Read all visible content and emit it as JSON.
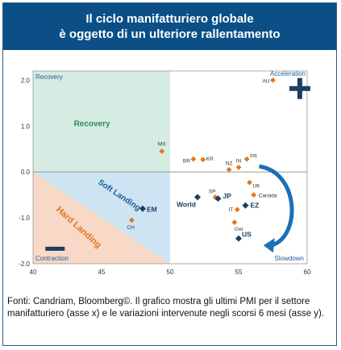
{
  "header": {
    "title_line1": "Il ciclo manifatturiero globale",
    "title_line2": "è oggetto di un ulteriore rallentamento"
  },
  "caption": "Fonti: Candriam, Bloomberg©. Il grafico mostra gli ultimi PMI per il settore manifatturiero (asse x) e le variazioni intervenute negli scorsi 6 mesi (asse y).",
  "colors": {
    "header_bg": "#0b4f86",
    "recovery_zone": "#d6ebe1",
    "soft_landing_zone": "#cde5f3",
    "hard_landing_zone": "#f8d8c6",
    "country_marker": "#e2761c",
    "aggregate_marker": "#1b3f63",
    "quadrant_text": "#1f5b99",
    "recovery_text": "#2e8b57",
    "hard_landing_text": "#e2761c",
    "arrow": "#1a6fb8"
  },
  "chart_data": {
    "type": "scatter",
    "xlim": [
      40,
      60
    ],
    "ylim": [
      -2.0,
      2.2
    ],
    "x_ticks": [
      "40",
      "45",
      "50",
      "55",
      "60"
    ],
    "y_ticks": [
      "2.0",
      "1.0",
      "0.0",
      "-1.0",
      "-2.0"
    ],
    "y_tick_values": [
      2.0,
      1.0,
      0.0,
      -1.0,
      -2.0
    ],
    "x_tick_values": [
      40,
      45,
      50,
      55,
      60
    ],
    "quadrant_labels": {
      "recovery_top": "Recovery",
      "recovery_center": "Recovery",
      "acceleration": "Acceleration",
      "soft_landing": "Soft Landing",
      "hard_landing": "Hard Landing",
      "contraction": "Contraction",
      "slowdown": "Slowdown"
    },
    "countries": [
      {
        "label": "AU",
        "x": 57.5,
        "y": 2.0
      },
      {
        "label": "MX",
        "x": 49.4,
        "y": 0.45
      },
      {
        "label": "BR",
        "x": 51.7,
        "y": 0.28
      },
      {
        "label": "KR",
        "x": 52.4,
        "y": 0.27
      },
      {
        "label": "NZ",
        "x": 54.3,
        "y": 0.05
      },
      {
        "label": "IN",
        "x": 55.0,
        "y": 0.1
      },
      {
        "label": "FR",
        "x": 55.6,
        "y": 0.28
      },
      {
        "label": "UK",
        "x": 55.8,
        "y": -0.23
      },
      {
        "label": "Canada",
        "x": 56.1,
        "y": -0.5
      },
      {
        "label": "SP",
        "x": 53.3,
        "y": -0.55
      },
      {
        "label": "IT",
        "x": 54.9,
        "y": -0.82
      },
      {
        "label": "Ger",
        "x": 54.7,
        "y": -1.1
      },
      {
        "label": "CH",
        "x": 47.2,
        "y": -1.05
      }
    ],
    "aggregates": [
      {
        "label": "EM",
        "x": 48.0,
        "y": -0.8
      },
      {
        "label": "World",
        "x": 52.0,
        "y": -0.55
      },
      {
        "label": "JP",
        "x": 53.5,
        "y": -0.58
      },
      {
        "label": "EZ",
        "x": 55.5,
        "y": -0.73
      },
      {
        "label": "US",
        "x": 55.0,
        "y": -1.45
      }
    ]
  }
}
